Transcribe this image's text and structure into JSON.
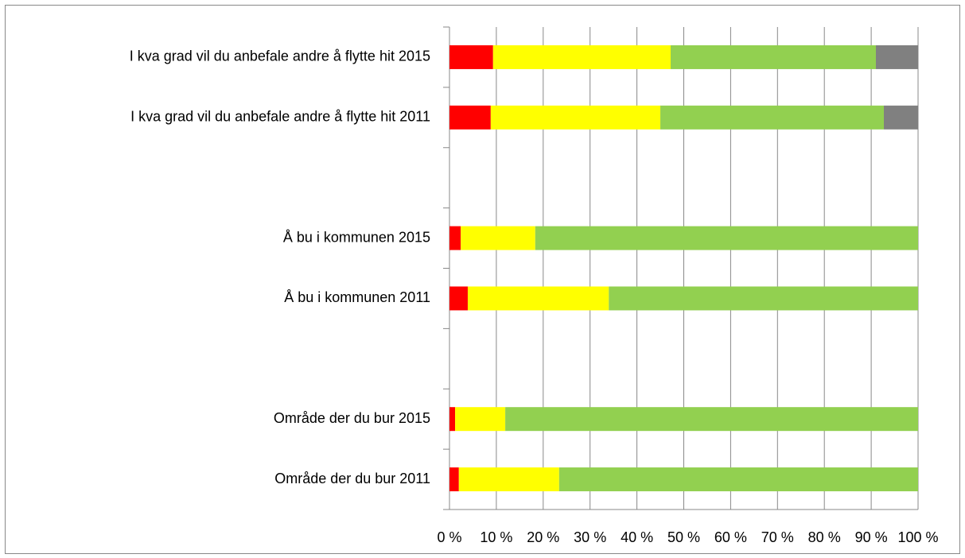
{
  "chart_data": {
    "type": "stacked-barh",
    "categories": [
      "I kva grad vil du anbefale andre å flytte hit 2015",
      "I kva grad vil du anbefale andre å flytte hit 2011",
      null,
      "Å bu i kommunen 2015",
      "Å bu i kommunen 2011",
      null,
      "Område der du bur 2015",
      "Område der du bur 2011"
    ],
    "series": [
      {
        "color": "#ff0000",
        "values": [
          9.3,
          8.8,
          null,
          2.4,
          3.9,
          null,
          1.2,
          2.0
        ]
      },
      {
        "color": "#ffff00",
        "values": [
          37.9,
          36.2,
          null,
          15.9,
          30.1,
          null,
          10.7,
          21.4
        ]
      },
      {
        "color": "#92d050",
        "values": [
          43.8,
          47.7,
          null,
          81.7,
          66.0,
          null,
          88.1,
          76.6
        ]
      },
      {
        "color": "#808080",
        "values": [
          9.0,
          7.3,
          null,
          0,
          0,
          null,
          0,
          0
        ]
      }
    ],
    "xlim": [
      0,
      100
    ],
    "xticks": [
      {
        "value": 0,
        "label": "0 %"
      },
      {
        "value": 10,
        "label": "10 %"
      },
      {
        "value": 20,
        "label": "20 %"
      },
      {
        "value": 30,
        "label": "30 %"
      },
      {
        "value": 40,
        "label": "40 %"
      },
      {
        "value": 50,
        "label": "50 %"
      },
      {
        "value": 60,
        "label": "60 %"
      },
      {
        "value": 70,
        "label": "70 %"
      },
      {
        "value": 80,
        "label": "80 %"
      },
      {
        "value": 90,
        "label": "90 %"
      },
      {
        "value": 100,
        "label": "100 %"
      }
    ],
    "grid": true
  }
}
